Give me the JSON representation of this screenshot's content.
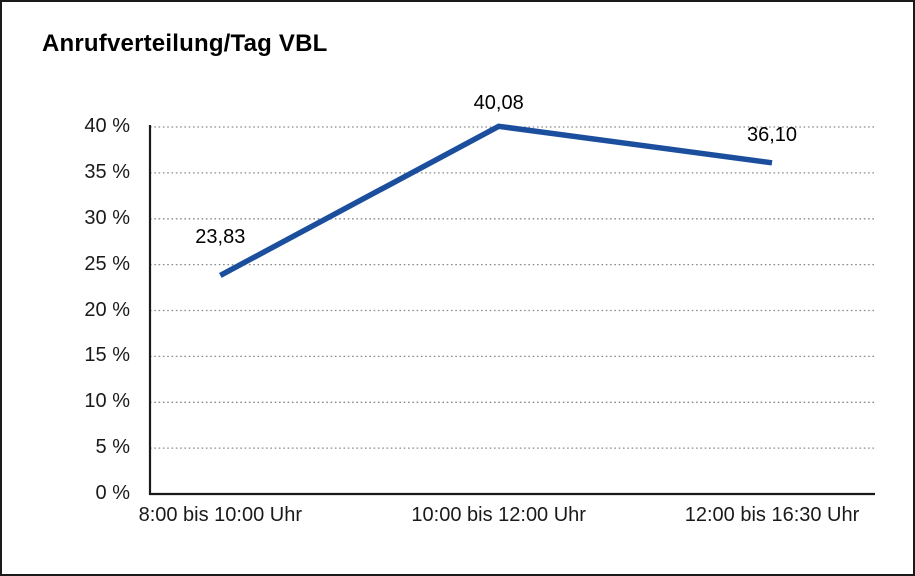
{
  "title": "Anrufverteilung/Tag VBL",
  "chart_data": {
    "type": "line",
    "title": "Anrufverteilung/Tag VBL",
    "categories": [
      "8:00 bis 10:00 Uhr",
      "10:00 bis 12:00 Uhr",
      "12:00 bis 16:30 Uhr"
    ],
    "series": [
      {
        "name": "Anrufverteilung/Tag VBL",
        "values": [
          23.83,
          40.08,
          36.1
        ]
      }
    ],
    "point_labels": [
      "23,83",
      "40,08",
      "36,10"
    ],
    "y_ticks": [
      "0 %",
      "5 %",
      "10 %",
      "15 %",
      "20 %",
      "25 %",
      "30 %",
      "35 %",
      "40 %"
    ],
    "y_tick_values": [
      0,
      5,
      10,
      15,
      20,
      25,
      30,
      35,
      40
    ],
    "ylim": [
      0,
      40
    ],
    "xlabel": "",
    "ylabel": "",
    "grid": "horizontal-dotted",
    "legend_position": "none",
    "colors": {
      "line": "#1b4f9e",
      "axis": "#1a1a1a",
      "gridline": "#8a8a8a",
      "text": "#1a1a1a",
      "background": "#ffffff"
    }
  }
}
